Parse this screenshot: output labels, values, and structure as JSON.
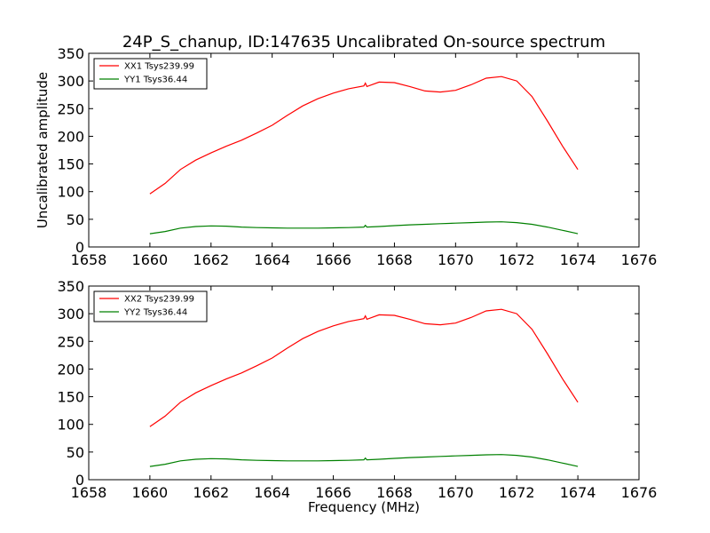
{
  "chart_data": {
    "type": "line",
    "title": "24P_S_chanup, ID:147635 Uncalibrated On-source spectrum",
    "xlabel": "Frequency (MHz)",
    "ylabel": "Uncalibrated amplitude",
    "xlim": [
      1658,
      1676
    ],
    "ylim": [
      0,
      350
    ],
    "xticks": [
      1658,
      1660,
      1662,
      1664,
      1666,
      1668,
      1670,
      1672,
      1674,
      1676
    ],
    "yticks": [
      0,
      50,
      100,
      150,
      200,
      250,
      300,
      350
    ],
    "grid": false,
    "legend_position": "top-left",
    "panels": [
      {
        "name": "top",
        "series": [
          {
            "name": "XX1 Tsys239.99",
            "color": "#ff0000",
            "x": [
              1660.0,
              1660.5,
              1661.0,
              1661.5,
              1662.0,
              1662.5,
              1663.0,
              1663.5,
              1664.0,
              1664.5,
              1665.0,
              1665.5,
              1666.0,
              1666.5,
              1667.0,
              1667.05,
              1667.1,
              1667.5,
              1668.0,
              1668.5,
              1669.0,
              1669.5,
              1670.0,
              1670.5,
              1671.0,
              1671.5,
              1672.0,
              1672.5,
              1673.0,
              1673.5,
              1674.0
            ],
            "y": [
              96,
              115,
              140,
              157,
              170,
              182,
              193,
              206,
              220,
              238,
              255,
              268,
              278,
              286,
              291,
              296,
              290,
              298,
              297,
              290,
              282,
              280,
              283,
              293,
              305,
              308,
              300,
              272,
              228,
              182,
              140
            ]
          },
          {
            "name": "YY1 Tsys36.44",
            "color": "#008000",
            "x": [
              1660.0,
              1660.5,
              1661.0,
              1661.5,
              1662.0,
              1662.5,
              1663.0,
              1663.5,
              1664.0,
              1664.5,
              1665.0,
              1665.5,
              1666.0,
              1666.5,
              1667.0,
              1667.05,
              1667.1,
              1667.5,
              1668.0,
              1668.5,
              1669.0,
              1669.5,
              1670.0,
              1670.5,
              1671.0,
              1671.5,
              1672.0,
              1672.5,
              1673.0,
              1673.5,
              1674.0
            ],
            "y": [
              24,
              28,
              34,
              37,
              38,
              37.5,
              36,
              35,
              34.5,
              34,
              34,
              34,
              34.5,
              35,
              36,
              39,
              36,
              37,
              38.5,
              40,
              41,
              42,
              43,
              44,
              45,
              45.5,
              44,
              41,
              36,
              30,
              24
            ]
          }
        ]
      },
      {
        "name": "bottom",
        "series": [
          {
            "name": "XX2 Tsys239.99",
            "color": "#ff0000",
            "x": [
              1660.0,
              1660.5,
              1661.0,
              1661.5,
              1662.0,
              1662.5,
              1663.0,
              1663.5,
              1664.0,
              1664.5,
              1665.0,
              1665.5,
              1666.0,
              1666.5,
              1667.0,
              1667.05,
              1667.1,
              1667.5,
              1668.0,
              1668.5,
              1669.0,
              1669.5,
              1670.0,
              1670.5,
              1671.0,
              1671.5,
              1672.0,
              1672.5,
              1673.0,
              1673.5,
              1674.0
            ],
            "y": [
              96,
              115,
              140,
              157,
              170,
              182,
              193,
              206,
              220,
              238,
              255,
              268,
              278,
              286,
              291,
              296,
              290,
              298,
              297,
              290,
              282,
              280,
              283,
              293,
              305,
              308,
              300,
              272,
              228,
              182,
              140
            ]
          },
          {
            "name": "YY2 Tsys36.44",
            "color": "#008000",
            "x": [
              1660.0,
              1660.5,
              1661.0,
              1661.5,
              1662.0,
              1662.5,
              1663.0,
              1663.5,
              1664.0,
              1664.5,
              1665.0,
              1665.5,
              1666.0,
              1666.5,
              1667.0,
              1667.05,
              1667.1,
              1667.5,
              1668.0,
              1668.5,
              1669.0,
              1669.5,
              1670.0,
              1670.5,
              1671.0,
              1671.5,
              1672.0,
              1672.5,
              1673.0,
              1673.5,
              1674.0
            ],
            "y": [
              24,
              28,
              34,
              37,
              38,
              37.5,
              36,
              35,
              34.5,
              34,
              34,
              34,
              34.5,
              35,
              36,
              39,
              36,
              37,
              38.5,
              40,
              41,
              42,
              43,
              44,
              45,
              45.5,
              44,
              41,
              36,
              30,
              24
            ]
          }
        ]
      }
    ]
  }
}
